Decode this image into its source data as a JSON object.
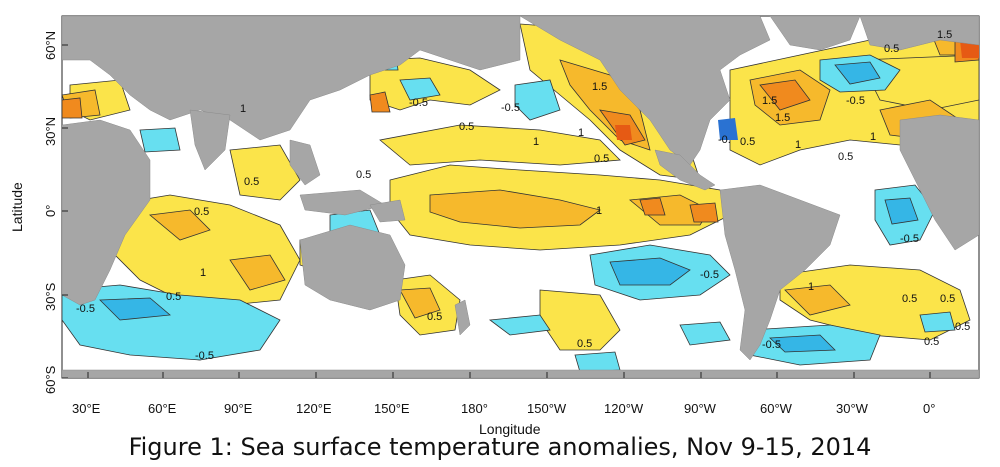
{
  "figure": {
    "caption": "Figure 1: Sea surface temperature anomalies, Nov 9-15, 2014",
    "x_axis_title": "Longitude",
    "y_axis_title": "Latitude",
    "x_ticks": [
      "30°E",
      "60°E",
      "90°E",
      "120°E",
      "150°E",
      "180°",
      "150°W",
      "120°W",
      "90°W",
      "60°W",
      "30°W",
      "0°"
    ],
    "y_ticks": [
      "60°N",
      "30°N",
      "0°",
      "30°S",
      "60°S"
    ]
  },
  "colors": {
    "land": "#a6a6a6",
    "ocean_neutral": "#ffffff",
    "warm_0_5": "#fbe44a",
    "warm_1_0": "#f6b92c",
    "warm_1_5": "#f08a1e",
    "warm_2_0": "#e65a14",
    "cool_0_5": "#67dff0",
    "cool_1_0": "#35b6e6",
    "cool_1_5": "#2a72d2"
  },
  "contour_labels": [
    {
      "text": "1.5"
    },
    {
      "text": "0.5"
    },
    {
      "text": "-0.5"
    },
    {
      "text": "-0.5"
    },
    {
      "text": "0.5"
    },
    {
      "text": "1.5"
    },
    {
      "text": "1"
    },
    {
      "text": "0.5"
    },
    {
      "text": "1"
    },
    {
      "text": "-0."
    },
    {
      "text": "0.5"
    },
    {
      "text": "1.5"
    },
    {
      "text": "1"
    },
    {
      "text": "-0.5"
    },
    {
      "text": "0.5"
    },
    {
      "text": "1"
    },
    {
      "text": "0.5"
    },
    {
      "text": "0.5"
    },
    {
      "text": "0.5"
    },
    {
      "text": "1"
    },
    {
      "text": "1"
    },
    {
      "text": "-0.5"
    },
    {
      "text": "-0.5"
    },
    {
      "text": "1"
    },
    {
      "text": "0.5"
    },
    {
      "text": "0.5"
    },
    {
      "text": "-0.5"
    },
    {
      "text": "-0.5"
    },
    {
      "text": "0.5"
    },
    {
      "text": "0.5"
    },
    {
      "text": "-0.5"
    },
    {
      "text": "0.5"
    },
    {
      "text": "0.5"
    },
    {
      "text": "1"
    },
    {
      "text": "1.5"
    },
    {
      "text": "0.5"
    }
  ]
}
